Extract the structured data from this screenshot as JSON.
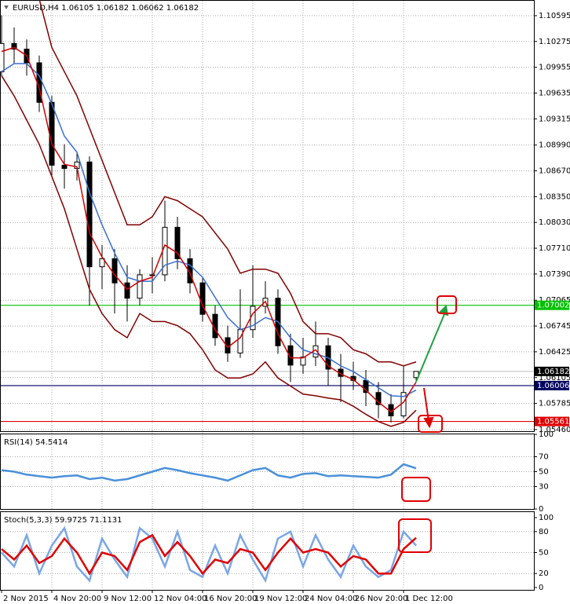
{
  "chart_data": [
    {
      "type": "candlestick",
      "title": "EURUSD,H4  1.06105 1.06182 1.06062 1.06182",
      "categories": [
        "2 Nov 2015",
        null,
        null,
        null,
        "4 Nov 20:00",
        null,
        null,
        null,
        "9 Nov 12:00",
        null,
        null,
        null,
        "12 Nov 04:00",
        null,
        null,
        null,
        "16 Nov 20:00",
        null,
        null,
        null,
        "19 Nov 12:00",
        null,
        null,
        null,
        "24 Nov 04:00",
        null,
        null,
        null,
        "26 Nov 20:00",
        null,
        null,
        null,
        "1 Dec 12:00",
        null
      ],
      "open": [
        1.099,
        1.1025,
        1.1018,
        1.1001,
        1.0952,
        1.0874,
        1.087,
        1.0878,
        1.0748,
        1.0758,
        1.0728,
        1.0709,
        1.0738,
        1.0738,
        1.0797,
        1.0758,
        1.0728,
        1.0689,
        1.066,
        1.0641,
        1.067,
        1.0699,
        1.0709,
        1.065,
        1.0626,
        1.0636,
        1.065,
        1.0621,
        1.0612,
        1.0607,
        1.0592,
        1.0577,
        1.0563,
        1.06105
      ],
      "high": [
        1.106,
        1.1045,
        1.103,
        1.101,
        1.096,
        1.09,
        1.089,
        1.0885,
        1.0775,
        1.077,
        1.075,
        1.0745,
        1.076,
        1.083,
        1.081,
        1.077,
        1.0735,
        1.07,
        1.0675,
        1.072,
        1.075,
        1.073,
        1.072,
        1.0665,
        1.066,
        1.068,
        1.066,
        1.064,
        1.063,
        1.062,
        1.0605,
        1.059,
        1.0625,
        1.06182
      ],
      "low": [
        1.0985,
        1.1,
        1.0985,
        1.094,
        1.086,
        1.0845,
        1.0855,
        1.07,
        1.072,
        1.069,
        1.068,
        1.07,
        1.0715,
        1.073,
        1.0745,
        1.0715,
        1.068,
        1.065,
        1.063,
        1.0635,
        1.066,
        1.069,
        1.064,
        1.0605,
        1.0615,
        1.0625,
        1.06,
        1.058,
        1.0595,
        1.0575,
        1.056,
        1.0555,
        1.056,
        1.06062
      ],
      "close": [
        1.1025,
        1.1018,
        1.1001,
        1.0952,
        1.0874,
        1.087,
        1.0878,
        1.0748,
        1.0758,
        1.0728,
        1.0709,
        1.0738,
        1.0738,
        1.0797,
        1.0758,
        1.0728,
        1.0689,
        1.066,
        1.0641,
        1.067,
        1.0699,
        1.0709,
        1.065,
        1.0626,
        1.0636,
        1.065,
        1.0621,
        1.0612,
        1.0607,
        1.0592,
        1.0577,
        1.0563,
        1.0592,
        1.06182
      ],
      "series": [
        {
          "color": "#800000",
          "values": [
            1.108,
            1.1085,
            1.109,
            1.108,
            1.102,
            1.099,
            1.096,
            1.092,
            1.088,
            1.084,
            1.08,
            1.08,
            1.081,
            1.0835,
            1.083,
            1.082,
            1.081,
            1.079,
            1.077,
            1.074,
            1.0745,
            1.0745,
            1.074,
            1.0715,
            1.068,
            1.0665,
            1.0665,
            1.066,
            1.0645,
            1.064,
            1.063,
            1.063,
            1.0625,
            1.063
          ]
        },
        {
          "color": "#800000",
          "values": [
            1.0985,
            1.096,
            1.093,
            1.09,
            1.086,
            1.082,
            1.077,
            1.072,
            1.069,
            1.067,
            1.066,
            1.069,
            1.068,
            1.068,
            1.0675,
            1.0665,
            1.0645,
            1.062,
            1.061,
            1.061,
            1.0615,
            1.063,
            1.061,
            1.06,
            1.059,
            1.0588,
            1.0585,
            1.0583,
            1.0575,
            1.0565,
            1.0556,
            1.055,
            1.0555,
            1.057
          ]
        },
        {
          "color": "#3a6fd0",
          "values": [
            1.099,
            1.1,
            1.1,
            1.0985,
            1.095,
            1.091,
            1.089,
            1.084,
            1.08,
            1.0765,
            1.0735,
            1.073,
            1.073,
            1.075,
            1.0755,
            1.075,
            1.0735,
            1.071,
            1.0685,
            1.067,
            1.0675,
            1.0685,
            1.068,
            1.066,
            1.0645,
            1.064,
            1.0635,
            1.0625,
            1.0618,
            1.0608,
            1.0598,
            1.0588,
            1.0587,
            1.0595
          ]
        },
        {
          "color": "#d00000",
          "values": [
            1.1015,
            1.102,
            1.101,
            1.097,
            1.09,
            1.0875,
            1.0872,
            1.079,
            1.076,
            1.0738,
            1.072,
            1.073,
            1.0735,
            1.0775,
            1.0765,
            1.074,
            1.07,
            1.067,
            1.0648,
            1.066,
            1.069,
            1.0705,
            1.0665,
            1.0635,
            1.0635,
            1.0645,
            1.0625,
            1.0615,
            1.0608,
            1.0595,
            1.058,
            1.0568,
            1.058,
            1.0605
          ]
        }
      ],
      "ylim": [
        1.0544,
        1.1077
      ],
      "yticks": [
        1.10595,
        1.10275,
        1.09955,
        1.09635,
        1.09315,
        {
          "value": 1.0899,
          "label": "1.08990"
        },
        {
          "value": 1.0867,
          "label": "1.08670"
        },
        {
          "value": 1.0835,
          "label": "1.08350"
        },
        {
          "value": 1.0803,
          "label": "1.08030"
        },
        {
          "value": 1.0771,
          "label": "1.07710"
        },
        {
          "value": 1.0739,
          "label": "1.07390"
        },
        1.07065,
        1.06745,
        1.06425,
        1.06105,
        1.05785,
        {
          "value": 1.0546,
          "label": "1.05460"
        }
      ],
      "levels": [
        {
          "value": 1.07002,
          "color": "#00c000"
        },
        {
          "value": 1.06006,
          "color": "#000060"
        },
        {
          "value": 1.05561,
          "color": "#e00000"
        }
      ],
      "last_price": 1.06182,
      "grid": true
    },
    {
      "type": "line",
      "title": "RSI(14) 54.5414",
      "series": [
        {
          "color": "#4a90d9",
          "values": [
            52,
            50,
            46,
            44,
            42,
            44,
            45,
            40,
            42,
            38,
            40,
            45,
            50,
            55,
            52,
            48,
            45,
            42,
            38,
            45,
            52,
            55,
            45,
            42,
            47,
            48,
            44,
            45,
            44,
            43,
            42,
            46,
            60,
            54.5414
          ]
        }
      ],
      "ylim": [
        0,
        100
      ],
      "yticks": [
        100,
        70,
        50,
        30,
        0
      ],
      "grid": true
    },
    {
      "type": "line",
      "title": "Stoch(5,3,3) 59.9725 71.1131",
      "series": [
        {
          "color": "#7aa6e6",
          "values": [
            50,
            30,
            75,
            20,
            60,
            85,
            30,
            10,
            70,
            40,
            15,
            85,
            70,
            30,
            80,
            25,
            15,
            60,
            20,
            75,
            40,
            10,
            70,
            80,
            30,
            75,
            40,
            15,
            60,
            30,
            15,
            25,
            80,
            59.9725
          ]
        },
        {
          "color": "#e00000",
          "values": [
            55,
            40,
            60,
            35,
            45,
            70,
            50,
            20,
            50,
            45,
            25,
            65,
            75,
            45,
            65,
            45,
            20,
            40,
            35,
            55,
            50,
            25,
            50,
            70,
            50,
            55,
            50,
            30,
            45,
            40,
            20,
            20,
            55,
            71.1131
          ]
        }
      ],
      "ylim": [
        0,
        100
      ],
      "yticks": [
        100,
        80,
        50,
        20,
        0
      ],
      "grid": true
    }
  ]
}
